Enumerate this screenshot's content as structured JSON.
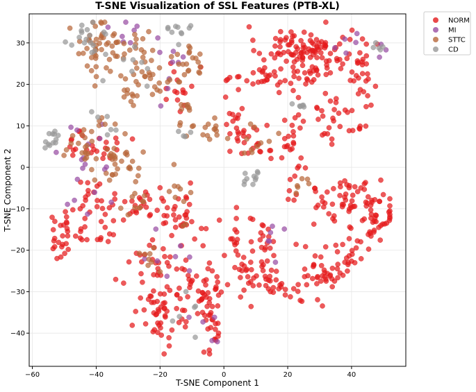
{
  "chart_data": {
    "type": "scatter",
    "title": "T-SNE Visualization of SSL Features (PTB-XL)",
    "xlabel": "T-SNE Component 1",
    "ylabel": "T-SNE Component 2",
    "xlim": [
      -61,
      57
    ],
    "ylim": [
      -48,
      37
    ],
    "xticks": [
      -60,
      -40,
      -20,
      0,
      20,
      40
    ],
    "yticks": [
      -40,
      -30,
      -20,
      -10,
      0,
      10,
      20,
      30
    ],
    "grid": true,
    "legend_position": "upper-right-outside",
    "series": [
      {
        "name": "NORM",
        "color": "#e41a1c",
        "clusters": [
          {
            "cx": 20,
            "cy": 29,
            "sx": 5,
            "sy": 2.5,
            "n": 55
          },
          {
            "cx": 32,
            "cy": 28,
            "sx": 4,
            "sy": 3,
            "n": 40
          },
          {
            "cx": 42,
            "cy": 25,
            "sx": 3,
            "sy": 3,
            "n": 25
          },
          {
            "cx": 14,
            "cy": 22,
            "sx": 4,
            "sy": 1.5,
            "n": 25
          },
          {
            "cx": 28,
            "cy": 22,
            "sx": 4,
            "sy": 2,
            "n": 20
          },
          {
            "cx": 36,
            "cy": 13,
            "sx": 6,
            "sy": 4,
            "n": 35
          },
          {
            "cx": 22,
            "cy": 5,
            "sx": 2,
            "sy": 5,
            "n": 25
          },
          {
            "cx": 40,
            "cy": -8,
            "sx": 8,
            "sy": 2.5,
            "n": 60
          },
          {
            "cx": 47,
            "cy": -13,
            "sx": 3,
            "sy": 5,
            "n": 35
          },
          {
            "cx": 38,
            "cy": -22,
            "sx": 4,
            "sy": 3,
            "n": 25
          },
          {
            "cx": 28,
            "cy": -27,
            "sx": 5,
            "sy": 3,
            "n": 35
          },
          {
            "cx": 13,
            "cy": -26,
            "sx": 5,
            "sy": 3,
            "n": 45
          },
          {
            "cx": 12,
            "cy": -18,
            "sx": 2,
            "sy": 3,
            "n": 15
          },
          {
            "cx": 4,
            "cy": -17,
            "sx": 2,
            "sy": 4,
            "n": 15
          },
          {
            "cx": -15,
            "cy": -30,
            "sx": 8,
            "sy": 4,
            "n": 60
          },
          {
            "cx": -20,
            "cy": -38,
            "sx": 3,
            "sy": 4,
            "n": 25
          },
          {
            "cx": -4,
            "cy": -38,
            "sx": 2,
            "sy": 4,
            "n": 25
          },
          {
            "cx": -3,
            "cy": -27,
            "sx": 3,
            "sy": 2,
            "n": 15
          },
          {
            "cx": -50,
            "cy": -16,
            "sx": 3,
            "sy": 3,
            "n": 30
          },
          {
            "cx": -41,
            "cy": -10,
            "sx": 3,
            "sy": 4,
            "n": 30
          },
          {
            "cx": -27,
            "cy": -10,
            "sx": 5,
            "sy": 2,
            "n": 25
          },
          {
            "cx": -14,
            "cy": -10,
            "sx": 3,
            "sy": 4,
            "n": 25
          },
          {
            "cx": -22,
            "cy": -22,
            "sx": 3,
            "sy": 2,
            "n": 15
          },
          {
            "cx": -10,
            "cy": -17,
            "sx": 2,
            "sy": 3,
            "n": 10
          },
          {
            "cx": -40,
            "cy": 6,
            "sx": 4,
            "sy": 3,
            "n": 25
          },
          {
            "cx": 3,
            "cy": 13,
            "sx": 2,
            "sy": 5,
            "n": 20
          },
          {
            "cx": 10,
            "cy": 6,
            "sx": 4,
            "sy": 2,
            "n": 20
          },
          {
            "cx": -14,
            "cy": 20,
            "sx": 3,
            "sy": 4,
            "n": 15
          }
        ]
      },
      {
        "name": "MI",
        "color": "#984ea3",
        "clusters": [
          {
            "cx": -44,
            "cy": 7,
            "sx": 6,
            "sy": 4,
            "n": 10
          },
          {
            "cx": -30,
            "cy": 31,
            "sx": 5,
            "sy": 2,
            "n": 8
          },
          {
            "cx": 44,
            "cy": 30,
            "sx": 4,
            "sy": 2,
            "n": 8
          },
          {
            "cx": -20,
            "cy": -22,
            "sx": 6,
            "sy": 3,
            "n": 8
          },
          {
            "cx": 15,
            "cy": -18,
            "sx": 3,
            "sy": 3,
            "n": 6
          },
          {
            "cx": -14,
            "cy": 26,
            "sx": 6,
            "sy": 4,
            "n": 8
          },
          {
            "cx": -40,
            "cy": -5,
            "sx": 6,
            "sy": 4,
            "n": 8
          },
          {
            "cx": -5,
            "cy": -40,
            "sx": 4,
            "sy": 3,
            "n": 5
          }
        ]
      },
      {
        "name": "STTC",
        "color": "#b8683b",
        "clusters": [
          {
            "cx": -40,
            "cy": 29,
            "sx": 4,
            "sy": 4,
            "n": 40
          },
          {
            "cx": -28,
            "cy": 28,
            "sx": 4,
            "sy": 3,
            "n": 25
          },
          {
            "cx": -22,
            "cy": 21,
            "sx": 3,
            "sy": 3,
            "n": 20
          },
          {
            "cx": -12,
            "cy": 24,
            "sx": 3,
            "sy": 3,
            "n": 20
          },
          {
            "cx": -30,
            "cy": 18,
            "sx": 2,
            "sy": 2,
            "n": 10
          },
          {
            "cx": -42,
            "cy": 5,
            "sx": 4,
            "sy": 3,
            "n": 30
          },
          {
            "cx": -33,
            "cy": 1,
            "sx": 3,
            "sy": 3,
            "n": 25
          },
          {
            "cx": -28,
            "cy": -9,
            "sx": 3,
            "sy": 2,
            "n": 10
          },
          {
            "cx": -12,
            "cy": 12,
            "sx": 2,
            "sy": 3,
            "n": 12
          },
          {
            "cx": -3,
            "cy": 8,
            "sx": 2,
            "sy": 2,
            "n": 12
          },
          {
            "cx": 13,
            "cy": 8,
            "sx": 3,
            "sy": 2,
            "n": 10
          },
          {
            "cx": -14,
            "cy": -6,
            "sx": 2,
            "sy": 3,
            "n": 10
          },
          {
            "cx": -22,
            "cy": -21,
            "sx": 2,
            "sy": 2,
            "n": 8
          },
          {
            "cx": 24,
            "cy": -5,
            "sx": 2,
            "sy": 1,
            "n": 6
          }
        ]
      },
      {
        "name": "CD",
        "color": "#999999",
        "clusters": [
          {
            "cx": -43,
            "cy": 31,
            "sx": 3,
            "sy": 3,
            "n": 18
          },
          {
            "cx": -14,
            "cy": 33,
            "sx": 2,
            "sy": 1.5,
            "n": 10
          },
          {
            "cx": -54,
            "cy": 6,
            "sx": 2,
            "sy": 2,
            "n": 12
          },
          {
            "cx": 8,
            "cy": -2,
            "sx": 2,
            "sy": 1.5,
            "n": 10
          },
          {
            "cx": 23,
            "cy": 15,
            "sx": 1,
            "sy": 0.5,
            "n": 6
          },
          {
            "cx": 49,
            "cy": 29,
            "sx": 1,
            "sy": 0.5,
            "n": 5
          },
          {
            "cx": -37,
            "cy": 10,
            "sx": 2,
            "sy": 2,
            "n": 6
          },
          {
            "cx": -28,
            "cy": 26,
            "sx": 4,
            "sy": 3,
            "n": 8
          },
          {
            "cx": -10,
            "cy": -36,
            "sx": 5,
            "sy": 4,
            "n": 6
          },
          {
            "cx": -12,
            "cy": 8,
            "sx": 2,
            "sy": 1,
            "n": 4
          }
        ]
      }
    ]
  }
}
